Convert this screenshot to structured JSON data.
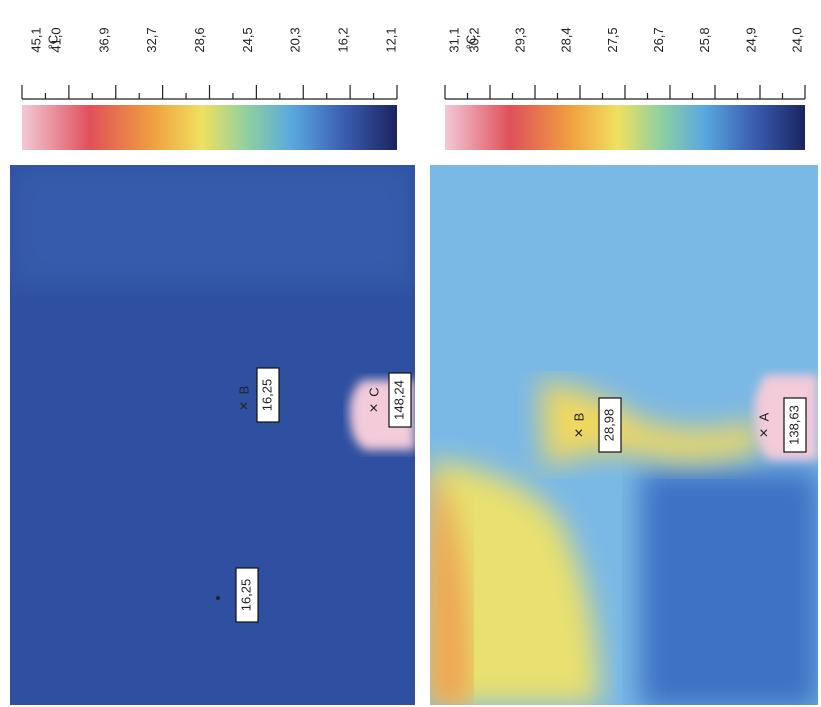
{
  "panels": [
    {
      "scale": {
        "max": "45,1",
        "unit": "°C",
        "ticks": [
          "41,0",
          "36,9",
          "32,7",
          "28,6",
          "24,5",
          "20,3",
          "16,2",
          "12,1"
        ]
      },
      "markers": [
        {
          "label": "16,25"
        },
        {
          "name": "B",
          "label": "16,25"
        },
        {
          "name": "C",
          "label": "148,24"
        }
      ]
    },
    {
      "scale": {
        "max": "31,1",
        "unit": "°C",
        "ticks": [
          "30,2",
          "29,3",
          "28,4",
          "27,5",
          "26,7",
          "25,8",
          "24,9",
          "24,0"
        ]
      },
      "markers": [
        {
          "name": "B",
          "label": "28,98"
        },
        {
          "name": "A",
          "label": "138,63"
        }
      ]
    }
  ]
}
